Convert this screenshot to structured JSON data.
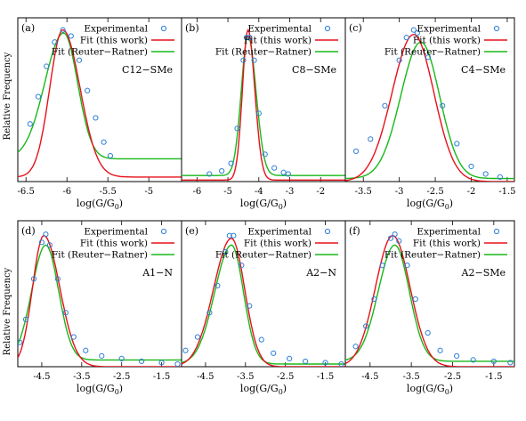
{
  "figure": {
    "ylabel": "Relative Frequency",
    "xlabel_text": "log(G/G",
    "xlabel_sub": "0",
    "xlabel_close": ")"
  },
  "legend_labels": [
    "Experimental",
    "Fit (this work)",
    "Fit (Reuter−Ratner)"
  ],
  "colors": {
    "experimental": "#2f7fd6",
    "fit_this_work": "#e8101a",
    "fit_reuter_ratner": "#18b81a"
  },
  "chart_data": [
    {
      "type": "line",
      "panel": "(a)",
      "sample": "C12−SMe",
      "xlim": [
        -6.6,
        -4.6
      ],
      "ylim": [
        0,
        1.08
      ],
      "xticks": [
        -6.5,
        -6,
        -5.5,
        -5
      ],
      "xtick_labels": [
        "-6.5",
        "-6",
        "-5.5",
        "-5"
      ],
      "experimental": {
        "x": [
          -6.45,
          -6.35,
          -6.25,
          -6.15,
          -6.05,
          -5.95,
          -5.85,
          -5.75,
          -5.65,
          -5.55,
          -5.47
        ],
        "y": [
          0.38,
          0.56,
          0.76,
          0.92,
          1.0,
          0.96,
          0.8,
          0.6,
          0.42,
          0.26,
          0.17
        ]
      },
      "fit_this_work": {
        "peak": -6.05,
        "sigma_left": 0.16,
        "sigma_right": 0.21,
        "amplitude": 1.0,
        "baseline": 0.03
      },
      "fit_reuter_ratner": {
        "peak": -6.04,
        "sigma_left": 0.23,
        "sigma_right": 0.17,
        "amplitude": 0.98,
        "baseline": 0.15
      }
    },
    {
      "type": "line",
      "panel": "(b)",
      "sample": "C8−SMe",
      "xlim": [
        -6.5,
        -1.2
      ],
      "ylim": [
        0,
        1.08
      ],
      "xticks": [
        -6,
        -5,
        -4,
        -3,
        -2
      ],
      "xtick_labels": [
        "-6",
        "-5",
        "-4",
        "-3",
        "-2"
      ],
      "experimental": {
        "x": [
          -5.6,
          -5.2,
          -4.9,
          -4.7,
          -4.5,
          -4.4,
          -4.3,
          -4.15,
          -4.0,
          -3.8,
          -3.5,
          -3.2,
          -3.05
        ],
        "y": [
          0.05,
          0.07,
          0.12,
          0.35,
          0.8,
          0.95,
          0.95,
          0.8,
          0.45,
          0.18,
          0.09,
          0.06,
          0.05
        ]
      },
      "fit_this_work": {
        "peak": -4.35,
        "sigma_left": 0.18,
        "sigma_right": 0.22,
        "amplitude": 1.0,
        "baseline": 0.01
      },
      "fit_reuter_ratner": {
        "peak": -4.35,
        "sigma_left": 0.22,
        "sigma_right": 0.26,
        "amplitude": 0.96,
        "baseline": 0.04
      }
    },
    {
      "type": "line",
      "panel": "(c)",
      "sample": "C4−SMe",
      "xlim": [
        -3.75,
        -1.4
      ],
      "ylim": [
        0,
        1.08
      ],
      "xticks": [
        -3.5,
        -3,
        -2.5,
        -2,
        -1.5
      ],
      "xtick_labels": [
        "-3.5",
        "-3",
        "-2.5",
        "-2",
        "-1.5"
      ],
      "experimental": {
        "x": [
          -3.6,
          -3.4,
          -3.2,
          -3.0,
          -2.9,
          -2.8,
          -2.75,
          -2.6,
          -2.4,
          -2.2,
          -2.0,
          -1.8,
          -1.6
        ],
        "y": [
          0.2,
          0.28,
          0.5,
          0.8,
          0.95,
          1.0,
          0.98,
          0.82,
          0.5,
          0.25,
          0.1,
          0.05,
          0.03
        ]
      },
      "fit_this_work": {
        "peak": -2.8,
        "sigma_left": 0.3,
        "sigma_right": 0.28,
        "amplitude": 0.97,
        "baseline": 0.0
      },
      "fit_reuter_ratner": {
        "peak": -2.7,
        "sigma_left": 0.28,
        "sigma_right": 0.26,
        "amplitude": 0.92,
        "baseline": 0.02
      }
    },
    {
      "type": "line",
      "panel": "(d)",
      "sample": "A1−N",
      "xlim": [
        -5.1,
        -1.0
      ],
      "ylim": [
        0,
        1.08
      ],
      "xticks": [
        -4.5,
        -3.5,
        -2.5,
        -1.5
      ],
      "xtick_labels": [
        "-4.5",
        "-3.5",
        "-2.5",
        "-1.5"
      ],
      "experimental": {
        "x": [
          -5.05,
          -4.9,
          -4.7,
          -4.5,
          -4.4,
          -4.3,
          -4.1,
          -3.9,
          -3.7,
          -3.4,
          -3.0,
          -2.5,
          -2.0,
          -1.5,
          -1.1
        ],
        "y": [
          0.18,
          0.35,
          0.65,
          0.92,
          0.98,
          0.9,
          0.65,
          0.4,
          0.22,
          0.12,
          0.08,
          0.06,
          0.04,
          0.03,
          0.02
        ]
      },
      "fit_this_work": {
        "peak": -4.45,
        "sigma_left": 0.28,
        "sigma_right": 0.4,
        "amplitude": 0.97,
        "baseline": 0.0
      },
      "fit_reuter_ratner": {
        "peak": -4.4,
        "sigma_left": 0.35,
        "sigma_right": 0.32,
        "amplitude": 0.9,
        "baseline": 0.05
      }
    },
    {
      "type": "line",
      "panel": "(e)",
      "sample": "A2−N",
      "xlim": [
        -5.1,
        -1.0
      ],
      "ylim": [
        0,
        1.08
      ],
      "xticks": [
        -4.5,
        -3.5,
        -2.5,
        -1.5
      ],
      "xtick_labels": [
        "-4.5",
        "-3.5",
        "-2.5",
        "-1.5"
      ],
      "experimental": {
        "x": [
          -5.0,
          -4.7,
          -4.4,
          -4.2,
          -4.0,
          -3.9,
          -3.8,
          -3.6,
          -3.4,
          -3.1,
          -2.8,
          -2.4,
          -2.0,
          -1.5,
          -1.1
        ],
        "y": [
          0.12,
          0.22,
          0.4,
          0.6,
          0.85,
          0.97,
          0.97,
          0.75,
          0.45,
          0.2,
          0.1,
          0.06,
          0.04,
          0.03,
          0.02
        ]
      },
      "fit_this_work": {
        "peak": -3.85,
        "sigma_left": 0.45,
        "sigma_right": 0.33,
        "amplitude": 0.95,
        "baseline": 0.0
      },
      "fit_reuter_ratner": {
        "peak": -3.85,
        "sigma_left": 0.42,
        "sigma_right": 0.3,
        "amplitude": 0.9,
        "baseline": 0.02
      }
    },
    {
      "type": "line",
      "panel": "(f)",
      "sample": "A2−SMe",
      "xlim": [
        -5.1,
        -1.0
      ],
      "ylim": [
        0,
        1.08
      ],
      "xticks": [
        -4.5,
        -3.5,
        -2.5,
        -1.5
      ],
      "xtick_labels": [
        "-4.5",
        "-3.5",
        "-2.5",
        "-1.5"
      ],
      "experimental": {
        "x": [
          -4.85,
          -4.6,
          -4.4,
          -4.2,
          -4.0,
          -3.9,
          -3.8,
          -3.6,
          -3.4,
          -3.1,
          -2.8,
          -2.4,
          -2.0,
          -1.5,
          -1.1
        ],
        "y": [
          0.15,
          0.3,
          0.5,
          0.75,
          0.95,
          0.98,
          0.93,
          0.75,
          0.5,
          0.25,
          0.12,
          0.08,
          0.05,
          0.04,
          0.03
        ]
      },
      "fit_this_work": {
        "peak": -3.95,
        "sigma_left": 0.42,
        "sigma_right": 0.42,
        "amplitude": 0.97,
        "baseline": 0.0
      },
      "fit_reuter_ratner": {
        "peak": -3.9,
        "sigma_left": 0.4,
        "sigma_right": 0.35,
        "amplitude": 0.9,
        "baseline": 0.04
      }
    }
  ]
}
